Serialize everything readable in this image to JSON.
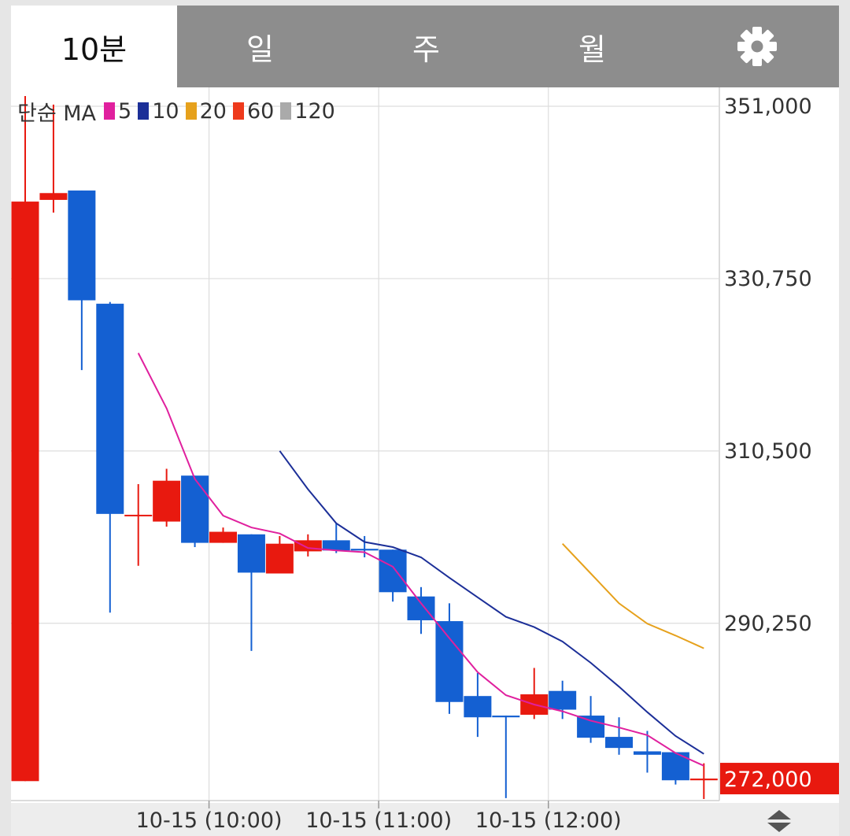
{
  "tabs": [
    {
      "label": "10분",
      "active": true
    },
    {
      "label": "일",
      "active": false
    },
    {
      "label": "주",
      "active": false
    },
    {
      "label": "월",
      "active": false
    }
  ],
  "legend": {
    "label": "단순 MA",
    "items": [
      {
        "value": "5",
        "color": "#e0209e"
      },
      {
        "value": "10",
        "color": "#1c2f98"
      },
      {
        "value": "20",
        "color": "#e6a11c"
      },
      {
        "value": "60",
        "color": "#ee3a1c"
      },
      {
        "value": "120",
        "color": "#aaaaaa"
      }
    ]
  },
  "chart_data": {
    "type": "candlestick",
    "y_ticks": [
      "351,000",
      "330,750",
      "310,500",
      "290,250"
    ],
    "x_ticks": [
      "10-15 (10:00)",
      "10-15 (11:00)",
      "10-15 (12:00)"
    ],
    "ylim": [
      269600,
      351000
    ],
    "current_price": "272,000",
    "up_color": "#e8190f",
    "down_color": "#1460d2",
    "candles": [
      {
        "o": 271700,
        "h": 352200,
        "l": 271700,
        "c": 339800
      },
      {
        "o": 340000,
        "h": 351200,
        "l": 338500,
        "c": 340800
      },
      {
        "o": 341100,
        "h": 341100,
        "l": 320000,
        "c": 328200
      },
      {
        "o": 327800,
        "h": 328000,
        "l": 291500,
        "c": 303100
      },
      {
        "o": 303000,
        "h": 306600,
        "l": 297000,
        "c": 303000
      },
      {
        "o": 302200,
        "h": 308400,
        "l": 301600,
        "c": 307000
      },
      {
        "o": 307600,
        "h": 307600,
        "l": 299200,
        "c": 299700
      },
      {
        "o": 299700,
        "h": 301500,
        "l": 299700,
        "c": 301000
      },
      {
        "o": 300700,
        "h": 300700,
        "l": 287000,
        "c": 296200
      },
      {
        "o": 296100,
        "h": 300500,
        "l": 296100,
        "c": 299600
      },
      {
        "o": 298700,
        "h": 300700,
        "l": 298100,
        "c": 300000
      },
      {
        "o": 300000,
        "h": 302000,
        "l": 298500,
        "c": 298800
      },
      {
        "o": 299000,
        "h": 300500,
        "l": 298000,
        "c": 298800
      },
      {
        "o": 298900,
        "h": 298900,
        "l": 292800,
        "c": 293900
      },
      {
        "o": 293400,
        "h": 294500,
        "l": 289000,
        "c": 290600
      },
      {
        "o": 290500,
        "h": 292600,
        "l": 279600,
        "c": 281000
      },
      {
        "o": 281700,
        "h": 284400,
        "l": 276900,
        "c": 279200
      },
      {
        "o": 279400,
        "h": 279400,
        "l": 269700,
        "c": 279200
      },
      {
        "o": 279500,
        "h": 285000,
        "l": 279000,
        "c": 281900
      },
      {
        "o": 282300,
        "h": 283500,
        "l": 279000,
        "c": 280100
      },
      {
        "o": 279400,
        "h": 281700,
        "l": 276200,
        "c": 276800
      },
      {
        "o": 276900,
        "h": 279200,
        "l": 274800,
        "c": 275600
      },
      {
        "o": 275200,
        "h": 277600,
        "l": 272700,
        "c": 274800
      },
      {
        "o": 275100,
        "h": 275100,
        "l": 271300,
        "c": 271800
      },
      {
        "o": 271800,
        "h": 273800,
        "l": 269600,
        "c": 272000
      }
    ],
    "ma5": [
      {
        "i": 4,
        "v": 322000
      },
      {
        "i": 5,
        "v": 315500
      },
      {
        "i": 6,
        "v": 307200
      },
      {
        "i": 7,
        "v": 302900
      },
      {
        "i": 8,
        "v": 301500
      },
      {
        "i": 9,
        "v": 300800
      },
      {
        "i": 10,
        "v": 299100
      },
      {
        "i": 11,
        "v": 298800
      },
      {
        "i": 12,
        "v": 298600
      },
      {
        "i": 13,
        "v": 296900
      },
      {
        "i": 14,
        "v": 292600
      },
      {
        "i": 15,
        "v": 288500
      },
      {
        "i": 16,
        "v": 284500
      },
      {
        "i": 17,
        "v": 281800
      },
      {
        "i": 18,
        "v": 280700
      },
      {
        "i": 19,
        "v": 279900
      },
      {
        "i": 20,
        "v": 278800
      },
      {
        "i": 21,
        "v": 278000
      },
      {
        "i": 22,
        "v": 277100
      },
      {
        "i": 23,
        "v": 275000
      },
      {
        "i": 24,
        "v": 273500
      }
    ],
    "ma10": [
      {
        "i": 9,
        "v": 310500
      },
      {
        "i": 10,
        "v": 306000
      },
      {
        "i": 11,
        "v": 302000
      },
      {
        "i": 12,
        "v": 299800
      },
      {
        "i": 13,
        "v": 299200
      },
      {
        "i": 14,
        "v": 298000
      },
      {
        "i": 15,
        "v": 295600
      },
      {
        "i": 16,
        "v": 293300
      },
      {
        "i": 17,
        "v": 291000
      },
      {
        "i": 18,
        "v": 289800
      },
      {
        "i": 19,
        "v": 288100
      },
      {
        "i": 20,
        "v": 285600
      },
      {
        "i": 21,
        "v": 282800
      },
      {
        "i": 22,
        "v": 279800
      },
      {
        "i": 23,
        "v": 277000
      },
      {
        "i": 24,
        "v": 274900
      }
    ],
    "ma20": [
      {
        "i": 19,
        "v": 299600
      },
      {
        "i": 20,
        "v": 296100
      },
      {
        "i": 21,
        "v": 292600
      },
      {
        "i": 22,
        "v": 290200
      },
      {
        "i": 23,
        "v": 288800
      },
      {
        "i": 24,
        "v": 287300
      }
    ]
  }
}
